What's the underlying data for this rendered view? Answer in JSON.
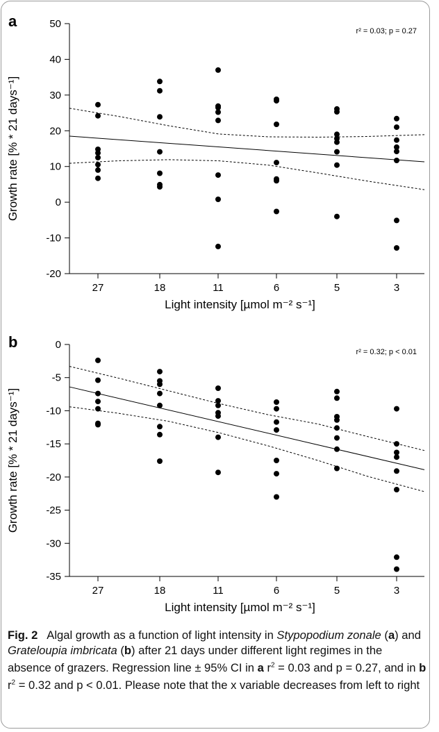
{
  "chart_data": [
    {
      "type": "scatter",
      "panel_label": "a",
      "annotation": "r² = 0.03; p = 0.27",
      "xlabel": "Light intensity [µmol m⁻² s⁻¹]",
      "ylabel": "Growth rate [% * 21 days⁻¹]",
      "categories": [
        "27",
        "18",
        "11",
        "6",
        "5",
        "3"
      ],
      "ylim": [
        -20,
        50
      ],
      "yticks": [
        -20,
        -10,
        0,
        10,
        20,
        30,
        40,
        50
      ],
      "points": [
        {
          "x": "27",
          "y": 27.3
        },
        {
          "x": "27",
          "y": 24.2
        },
        {
          "x": "27",
          "y": 14.8
        },
        {
          "x": "27",
          "y": 13.8
        },
        {
          "x": "27",
          "y": 12.5
        },
        {
          "x": "27",
          "y": 10.5
        },
        {
          "x": "27",
          "y": 9.0
        },
        {
          "x": "27",
          "y": 6.7
        },
        {
          "x": "18",
          "y": 33.8
        },
        {
          "x": "18",
          "y": 31.2
        },
        {
          "x": "18",
          "y": 23.9
        },
        {
          "x": "18",
          "y": 14.1
        },
        {
          "x": "18",
          "y": 8.1
        },
        {
          "x": "18",
          "y": 4.9
        },
        {
          "x": "18",
          "y": 4.3
        },
        {
          "x": "11",
          "y": 37.0
        },
        {
          "x": "11",
          "y": 26.9
        },
        {
          "x": "11",
          "y": 26.5
        },
        {
          "x": "11",
          "y": 25.2
        },
        {
          "x": "11",
          "y": 22.9
        },
        {
          "x": "11",
          "y": 7.6
        },
        {
          "x": "11",
          "y": 0.8
        },
        {
          "x": "11",
          "y": -12.4
        },
        {
          "x": "6",
          "y": 28.8
        },
        {
          "x": "6",
          "y": 28.4
        },
        {
          "x": "6",
          "y": 21.8
        },
        {
          "x": "6",
          "y": 11.1
        },
        {
          "x": "6",
          "y": 6.5
        },
        {
          "x": "6",
          "y": 6.0
        },
        {
          "x": "6",
          "y": -2.6
        },
        {
          "x": "5",
          "y": 26.1
        },
        {
          "x": "5",
          "y": 25.3
        },
        {
          "x": "5",
          "y": 19.0
        },
        {
          "x": "5",
          "y": 17.8
        },
        {
          "x": "5",
          "y": 16.8
        },
        {
          "x": "5",
          "y": 14.1
        },
        {
          "x": "5",
          "y": 10.4
        },
        {
          "x": "5",
          "y": -4.0
        },
        {
          "x": "3",
          "y": 23.4
        },
        {
          "x": "3",
          "y": 21.0
        },
        {
          "x": "3",
          "y": 17.4
        },
        {
          "x": "3",
          "y": 15.4
        },
        {
          "x": "3",
          "y": 14.2
        },
        {
          "x": "3",
          "y": 11.7
        },
        {
          "x": "3",
          "y": -5.1
        },
        {
          "x": "3",
          "y": -12.8
        }
      ],
      "regression_line": {
        "y_start": 18.5,
        "y_end": 11.3
      },
      "ci_upper": [
        [
          0,
          26.3
        ],
        [
          0.14,
          24.0
        ],
        [
          0.28,
          21.4
        ],
        [
          0.42,
          19.1
        ],
        [
          0.56,
          18.3
        ],
        [
          0.7,
          18.2
        ],
        [
          0.84,
          18.4
        ],
        [
          1,
          18.9
        ]
      ],
      "ci_lower": [
        [
          0,
          10.9
        ],
        [
          0.14,
          11.6
        ],
        [
          0.28,
          11.9
        ],
        [
          0.42,
          11.6
        ],
        [
          0.56,
          10.4
        ],
        [
          0.7,
          8.2
        ],
        [
          0.84,
          5.9
        ],
        [
          1,
          3.5
        ]
      ]
    },
    {
      "type": "scatter",
      "panel_label": "b",
      "annotation": "r² = 0.32; p < 0.01",
      "xlabel": "Light intensity [µmol m⁻² s⁻¹]",
      "ylabel": "Growth rate [% * 21 days⁻¹]",
      "categories": [
        "27",
        "18",
        "11",
        "6",
        "5",
        "3"
      ],
      "ylim": [
        -35,
        0
      ],
      "yticks": [
        -35,
        -30,
        -25,
        -20,
        -15,
        -10,
        -5,
        0
      ],
      "points": [
        {
          "x": "27",
          "y": -2.4
        },
        {
          "x": "27",
          "y": -5.4
        },
        {
          "x": "27",
          "y": -7.4
        },
        {
          "x": "27",
          "y": -8.6
        },
        {
          "x": "27",
          "y": -9.7
        },
        {
          "x": "27",
          "y": -11.9
        },
        {
          "x": "27",
          "y": -12.1
        },
        {
          "x": "18",
          "y": -4.1
        },
        {
          "x": "18",
          "y": -5.5
        },
        {
          "x": "18",
          "y": -6.0
        },
        {
          "x": "18",
          "y": -7.4
        },
        {
          "x": "18",
          "y": -9.2
        },
        {
          "x": "18",
          "y": -12.4
        },
        {
          "x": "18",
          "y": -13.6
        },
        {
          "x": "18",
          "y": -17.6
        },
        {
          "x": "11",
          "y": -6.6
        },
        {
          "x": "11",
          "y": -8.5
        },
        {
          "x": "11",
          "y": -9.2
        },
        {
          "x": "11",
          "y": -10.3
        },
        {
          "x": "11",
          "y": -10.8
        },
        {
          "x": "11",
          "y": -14.0
        },
        {
          "x": "11",
          "y": -19.3
        },
        {
          "x": "6",
          "y": -8.7
        },
        {
          "x": "6",
          "y": -9.7
        },
        {
          "x": "6",
          "y": -11.7
        },
        {
          "x": "6",
          "y": -12.9
        },
        {
          "x": "6",
          "y": -17.5
        },
        {
          "x": "6",
          "y": -19.5
        },
        {
          "x": "6",
          "y": -23.0
        },
        {
          "x": "5",
          "y": -7.1
        },
        {
          "x": "5",
          "y": -8.1
        },
        {
          "x": "5",
          "y": -10.9
        },
        {
          "x": "5",
          "y": -11.4
        },
        {
          "x": "5",
          "y": -12.6
        },
        {
          "x": "5",
          "y": -14.1
        },
        {
          "x": "5",
          "y": -15.8
        },
        {
          "x": "5",
          "y": -18.7
        },
        {
          "x": "3",
          "y": -9.7
        },
        {
          "x": "3",
          "y": -15.0
        },
        {
          "x": "3",
          "y": -16.3
        },
        {
          "x": "3",
          "y": -17.0
        },
        {
          "x": "3",
          "y": -19.1
        },
        {
          "x": "3",
          "y": -21.9
        },
        {
          "x": "3",
          "y": -32.1
        },
        {
          "x": "3",
          "y": -33.9
        }
      ],
      "regression_line": {
        "y_start": -6.4,
        "y_end": -18.9
      },
      "ci_upper": [
        [
          0,
          -3.3
        ],
        [
          0.14,
          -5.1
        ],
        [
          0.28,
          -7.0
        ],
        [
          0.42,
          -8.9
        ],
        [
          0.56,
          -10.6
        ],
        [
          0.7,
          -12.0
        ],
        [
          0.84,
          -13.9
        ],
        [
          1,
          -16.0
        ]
      ],
      "ci_lower": [
        [
          0,
          -9.4
        ],
        [
          0.14,
          -10.4
        ],
        [
          0.28,
          -11.6
        ],
        [
          0.42,
          -13.3
        ],
        [
          0.56,
          -15.3
        ],
        [
          0.7,
          -17.5
        ],
        [
          0.84,
          -19.9
        ],
        [
          1,
          -22.2
        ]
      ]
    }
  ],
  "caption": {
    "fig_label": "Fig. 2",
    "text": "Algal growth as a function of light intensity in Stypopodium zonale (a) and Grateloupia imbricata (b) after 21 days under different light regimes in the absence of grazers. Regression line ± 95% CI in a r² = 0.03 and p = 0.27, and in b r² = 0.32 and p < 0.01. Please note that the x variable decreases from left to right"
  }
}
